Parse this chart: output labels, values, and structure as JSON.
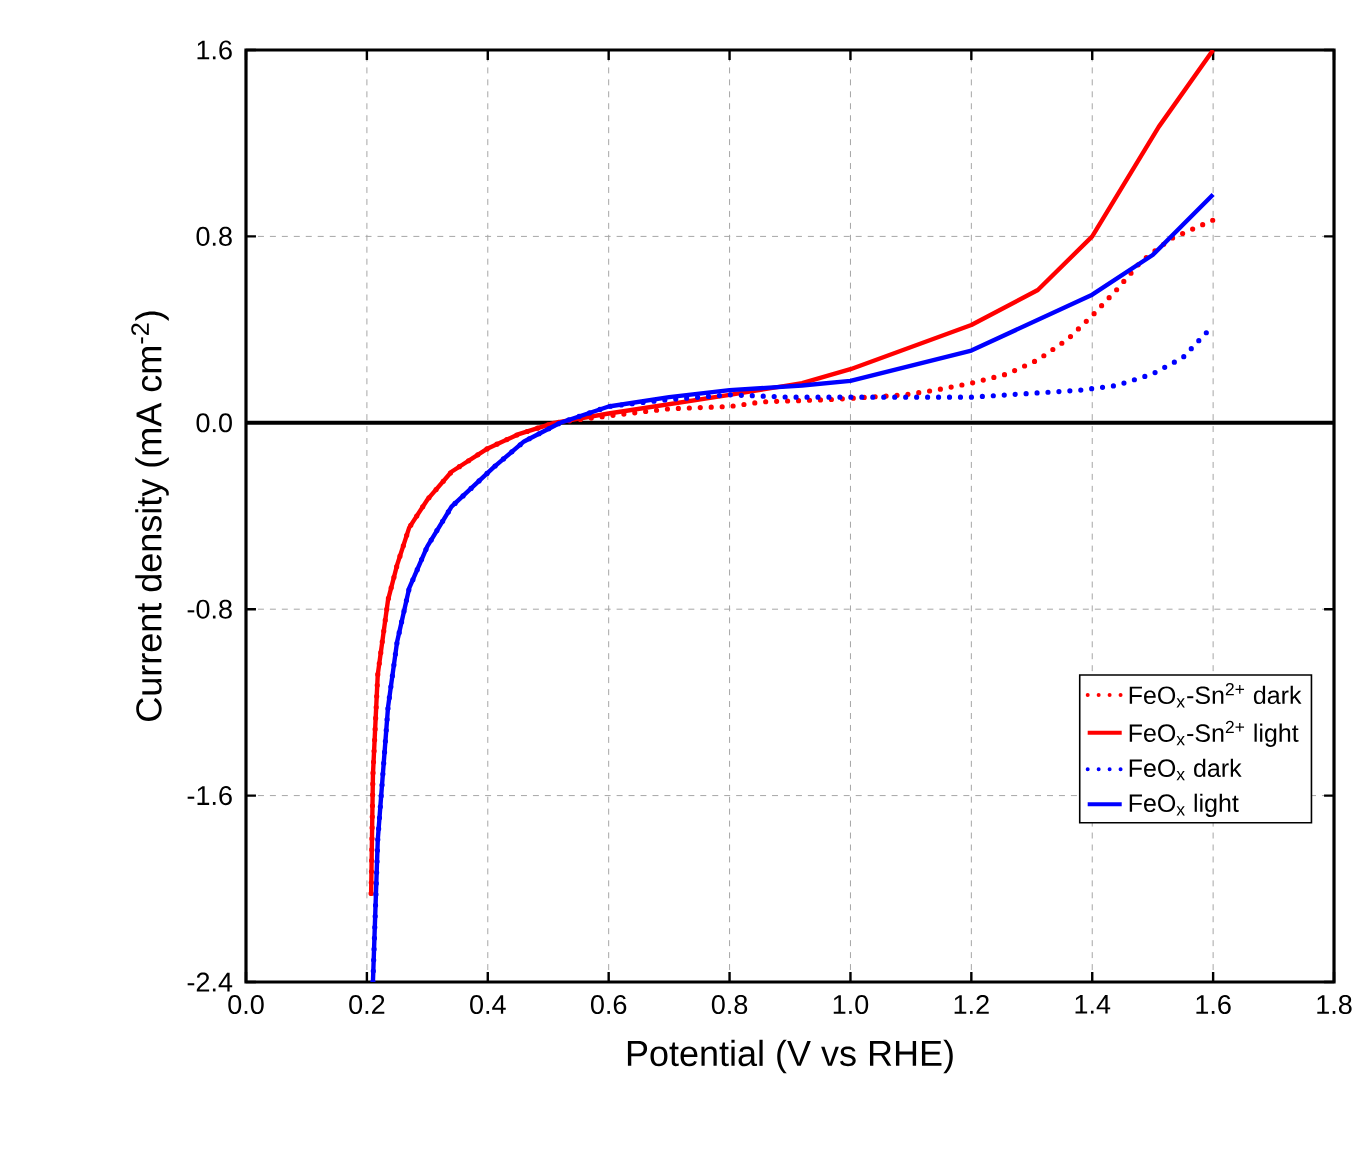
{
  "chart_data": {
    "type": "line",
    "xlabel": "Potential (V vs RHE)",
    "ylabel": "Current density (mA cm$^{-2}$)",
    "xlim": [
      0.0,
      1.8
    ],
    "ylim": [
      -2.4,
      1.6
    ],
    "xticks": [
      {
        "value": 0,
        "label": "0.0"
      },
      0.2,
      0.4,
      0.6,
      0.8,
      {
        "value": 1,
        "label": "1.0"
      },
      1.2,
      1.4,
      1.6,
      1.8
    ],
    "yticks": [
      -2.4,
      -1.6,
      -0.8,
      {
        "value": 0,
        "label": "0.0"
      },
      0.8,
      1.6
    ],
    "grid": true,
    "legend": "right",
    "marker": "none",
    "ref_lines": [
      {
        "axis": "y",
        "value": 0,
        "color": "#000000",
        "line_style": "solid"
      }
    ],
    "series": [
      {
        "name": "FeO$_{x}$-Sn$^{2+}$ dark",
        "color": "#ff0000",
        "line_style": "dotted",
        "x": [
          0.207,
          0.21,
          0.218,
          0.235,
          0.25,
          0.27,
          0.3,
          0.34,
          0.4,
          0.45,
          0.51,
          0.6,
          0.7,
          0.8,
          0.855,
          0.97,
          1.03,
          1.09,
          1.14,
          1.2,
          1.26,
          1.31,
          1.36,
          1.4,
          1.44,
          1.48,
          1.53,
          1.6
        ],
        "values": [
          -2.02,
          -1.51,
          -1.08,
          -0.76,
          -0.61,
          -0.45,
          -0.33,
          -0.21,
          -0.11,
          -0.05,
          0,
          0.03,
          0.06,
          0.07,
          0.09,
          0.1,
          0.11,
          0.12,
          0.14,
          0.17,
          0.21,
          0.27,
          0.36,
          0.46,
          0.57,
          0.69,
          0.79,
          0.87
        ]
      },
      {
        "name": "FeO$_{x}$-Sn$^{2+}$ light",
        "color": "#ff0000",
        "line_style": "solid",
        "x": [
          0.207,
          0.21,
          0.218,
          0.235,
          0.25,
          0.27,
          0.3,
          0.34,
          0.4,
          0.45,
          0.51,
          0.6,
          0.8,
          0.92,
          1.0,
          1.2,
          1.31,
          1.4,
          1.51,
          1.6
        ],
        "values": [
          -2.02,
          -1.51,
          -1.08,
          -0.76,
          -0.61,
          -0.45,
          -0.33,
          -0.21,
          -0.11,
          -0.05,
          0,
          0.04,
          0.12,
          0.17,
          0.23,
          0.42,
          0.57,
          0.8,
          1.27,
          1.6
        ]
      },
      {
        "name": "FeO$_{x}$ dark",
        "color": "#0000ff",
        "line_style": "dotted",
        "x": [
          0.21,
          0.218,
          0.235,
          0.25,
          0.27,
          0.3,
          0.34,
          0.41,
          0.46,
          0.52,
          0.6,
          0.7,
          0.8,
          0.9,
          0.96,
          1.02,
          1.14,
          1.2,
          1.26,
          1.32,
          1.38,
          1.44,
          1.5,
          1.55,
          1.59
        ],
        "values": [
          -2.4,
          -1.79,
          -1.22,
          -0.94,
          -0.71,
          -0.53,
          -0.36,
          -0.19,
          -0.08,
          0,
          0.07,
          0.1,
          0.12,
          0.11,
          0.11,
          0.11,
          0.11,
          0.11,
          0.12,
          0.13,
          0.14,
          0.16,
          0.21,
          0.28,
          0.39
        ]
      },
      {
        "name": "FeO$_{x}$ light",
        "color": "#0000ff",
        "line_style": "solid",
        "x": [
          0.21,
          0.218,
          0.235,
          0.25,
          0.27,
          0.3,
          0.34,
          0.41,
          0.46,
          0.52,
          0.6,
          0.7,
          0.8,
          0.92,
          1.0,
          1.2,
          1.4,
          1.5,
          1.6
        ],
        "values": [
          -2.4,
          -1.79,
          -1.22,
          -0.94,
          -0.71,
          -0.53,
          -0.36,
          -0.19,
          -0.08,
          0,
          0.07,
          0.11,
          0.14,
          0.16,
          0.18,
          0.31,
          0.55,
          0.72,
          0.98
        ]
      }
    ]
  }
}
